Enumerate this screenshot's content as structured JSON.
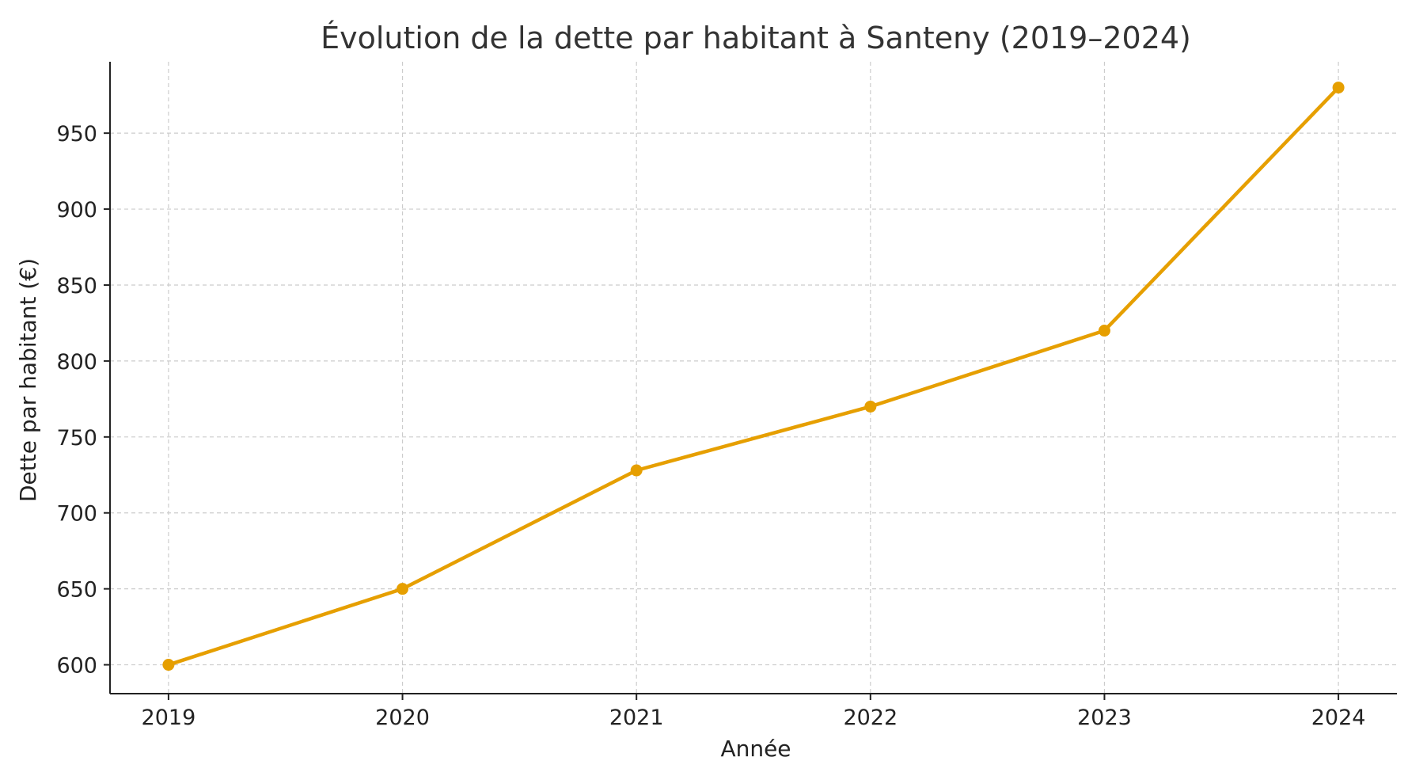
{
  "chart_data": {
    "type": "line",
    "title": "Évolution de la dette par habitant à Santeny (2019–2024)",
    "xlabel": "Année",
    "ylabel": "Dette par habitant (€)",
    "x": [
      2019,
      2020,
      2021,
      2022,
      2023,
      2024
    ],
    "series": [
      {
        "values": [
          600,
          650,
          728,
          770,
          820,
          980
        ],
        "color": "#E69F00"
      }
    ],
    "xlim": [
      2018.75,
      2024.25
    ],
    "ylim": [
      581,
      997
    ],
    "yticks": [
      600,
      650,
      700,
      750,
      800,
      850,
      900,
      950
    ],
    "xticks": [
      2019,
      2020,
      2021,
      2022,
      2023,
      2024
    ],
    "grid": true,
    "grid_style": "dashed",
    "legend": "none",
    "markers": "circle"
  }
}
